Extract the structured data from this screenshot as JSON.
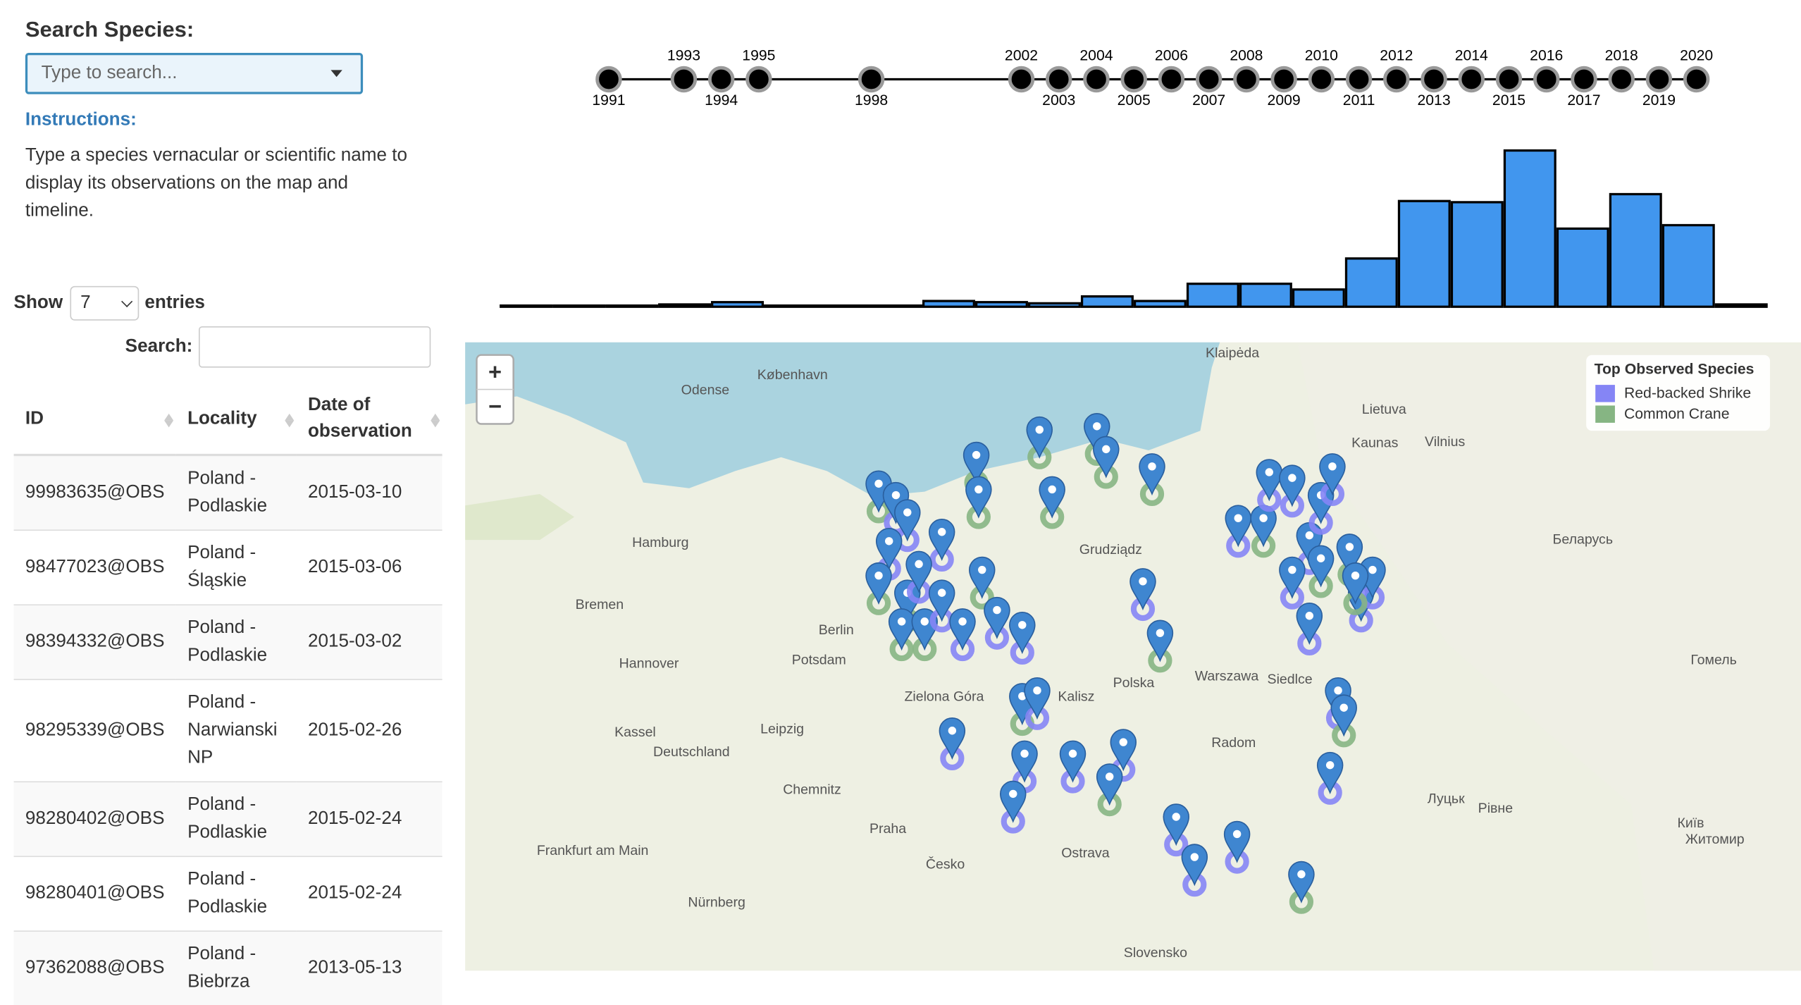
{
  "search": {
    "label": "Search Species:",
    "placeholder": "Type to search...",
    "instructions_title": "Instructions:",
    "instructions": "Type a species vernacular or scientific name to display its observations on the map and timeline."
  },
  "table_controls": {
    "show": "Show",
    "entries_value": "7",
    "entries": "entries",
    "search": "Search:"
  },
  "table": {
    "columns": [
      "ID",
      "Locality",
      "Date of observation"
    ],
    "rows": [
      [
        "99983635@OBS",
        "Poland - Podlaskie",
        "2015-03-10"
      ],
      [
        "98477023@OBS",
        "Poland - Śląskie",
        "2015-03-06"
      ],
      [
        "98394332@OBS",
        "Poland - Podlaskie",
        "2015-03-02"
      ],
      [
        "98295339@OBS",
        "Poland - Narwianski NP",
        "2015-02-26"
      ],
      [
        "98280402@OBS",
        "Poland - Podlaskie",
        "2015-02-24"
      ],
      [
        "98280401@OBS",
        "Poland - Podlaskie",
        "2015-02-24"
      ],
      [
        "97362088@OBS",
        "Poland - Biebrza",
        "2013-05-13"
      ]
    ]
  },
  "timeline": {
    "years": [
      1991,
      1993,
      1994,
      1995,
      1998,
      2002,
      2003,
      2004,
      2005,
      2006,
      2007,
      2008,
      2009,
      2010,
      2011,
      2012,
      2013,
      2014,
      2015,
      2016,
      2017,
      2018,
      2019,
      2020
    ]
  },
  "histogram": {
    "values": [
      1,
      1,
      1,
      2,
      4,
      1,
      1,
      1,
      5,
      4,
      3,
      9,
      5,
      20,
      20,
      15,
      42,
      92,
      91,
      136,
      68,
      98,
      71,
      2
    ],
    "color": "#4196ee"
  },
  "map": {
    "zoom_in": "+",
    "zoom_out": "−",
    "legend": {
      "title": "Top Observed Species",
      "items": [
        {
          "name": "Red-backed Shrike",
          "color": "#8585f5"
        },
        {
          "name": "Common Crane",
          "color": "#86b583"
        }
      ]
    },
    "labels": [
      "København",
      "Odense",
      "Hamburg",
      "Bremen",
      "Hannover",
      "Berlin",
      "Potsdam",
      "Leipzig",
      "Deutschland",
      "Kassel",
      "Zielona Góra",
      "Kalisz",
      "Polska",
      "Warszawa",
      "Radom",
      "Siedlce",
      "Grudziądz",
      "Lietuva",
      "Kaunas",
      "Vilnius",
      "Беларусь",
      "Гомель",
      "Praha",
      "Česko",
      "Ostrava",
      "Slovensko",
      "Chemnitz",
      "Nürnberg",
      "Frankfurt am Main",
      "Житомир",
      "Київ",
      "Рівне",
      "Луцьк",
      "Klaipėda"
    ]
  }
}
